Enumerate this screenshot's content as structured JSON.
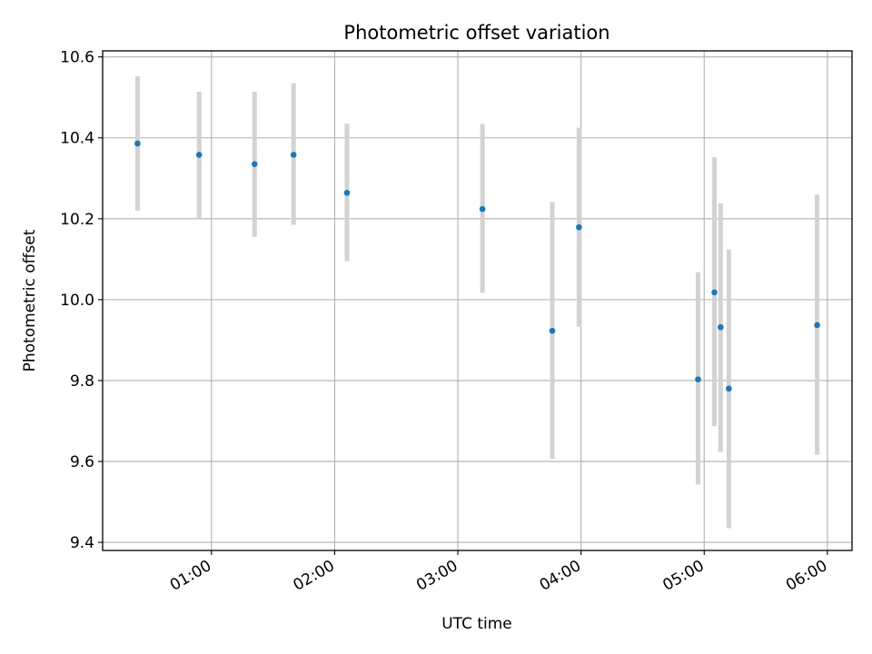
{
  "chart_data": {
    "type": "scatter",
    "title": "Photometric offset variation",
    "xlabel": "UTC time",
    "ylabel": "Photometric offset",
    "grid": true,
    "xlim_minutes": [
      7,
      372
    ],
    "ylim": [
      9.38,
      10.615
    ],
    "x_ticks": [
      "01:00",
      "02:00",
      "03:00",
      "04:00",
      "05:00",
      "06:00"
    ],
    "y_ticks": [
      "9.4",
      "9.6",
      "9.8",
      "10.0",
      "10.2",
      "10.4",
      "10.6"
    ],
    "point_color": "#1f77b4",
    "errorbar_color": "#d3d3d3",
    "points": [
      {
        "time": "00:24",
        "y": 10.386,
        "low": 10.22,
        "high": 10.552
      },
      {
        "time": "00:54",
        "y": 10.358,
        "low": 10.2,
        "high": 10.514
      },
      {
        "time": "01:21",
        "y": 10.335,
        "low": 10.155,
        "high": 10.514
      },
      {
        "time": "01:40",
        "y": 10.358,
        "low": 10.185,
        "high": 10.535
      },
      {
        "time": "02:06",
        "y": 10.264,
        "low": 10.095,
        "high": 10.435
      },
      {
        "time": "03:12",
        "y": 10.224,
        "low": 10.017,
        "high": 10.434
      },
      {
        "time": "03:46",
        "y": 9.923,
        "low": 9.606,
        "high": 10.241
      },
      {
        "time": "03:59",
        "y": 10.179,
        "low": 9.933,
        "high": 10.425
      },
      {
        "time": "04:57",
        "y": 9.803,
        "low": 9.543,
        "high": 10.068
      },
      {
        "time": "05:05",
        "y": 10.018,
        "low": 9.687,
        "high": 10.352
      },
      {
        "time": "05:08",
        "y": 9.932,
        "low": 9.624,
        "high": 10.238
      },
      {
        "time": "05:12",
        "y": 9.78,
        "low": 9.435,
        "high": 10.124
      },
      {
        "time": "05:55",
        "y": 9.937,
        "low": 9.617,
        "high": 10.26
      }
    ]
  }
}
